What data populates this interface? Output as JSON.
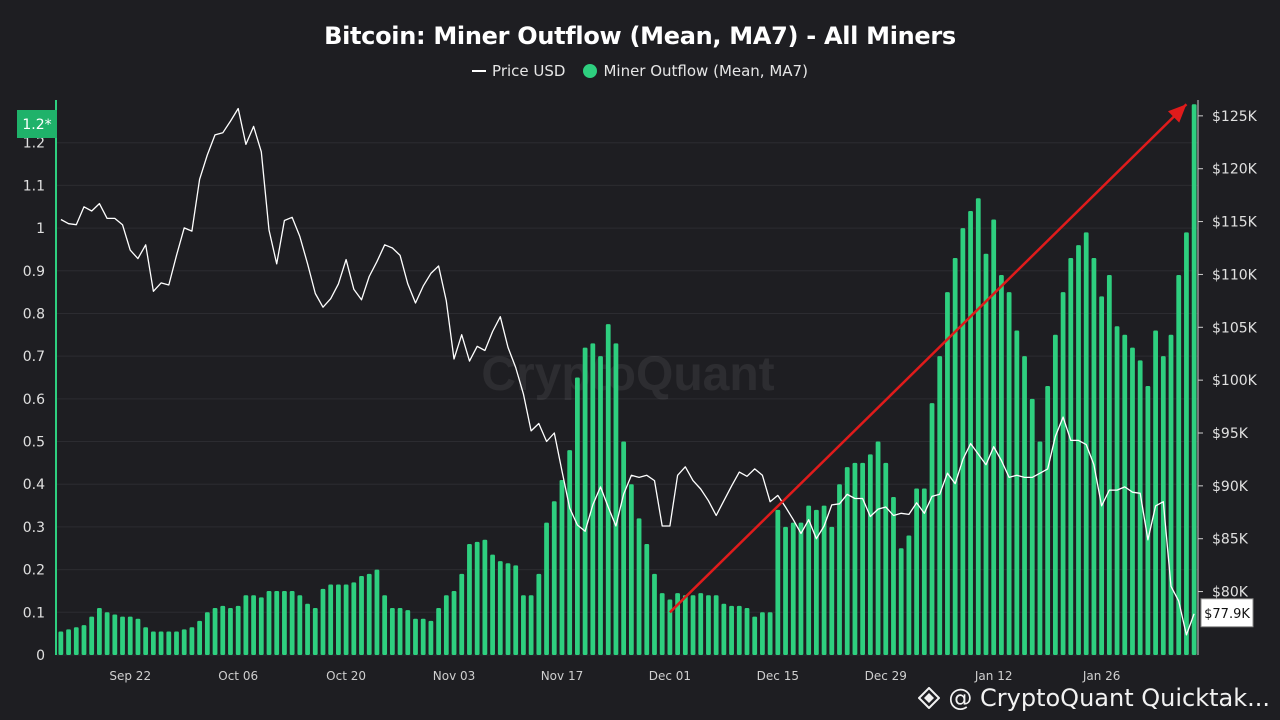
{
  "title": "Bitcoin: Miner Outflow (Mean, MA7) - All Miners",
  "legend": {
    "price_label": "Price USD",
    "outflow_label": "Miner Outflow (Mean, MA7)"
  },
  "watermark": "CryptoQuant",
  "footer_text": "@ CryptoQuant Quicktak...",
  "colors": {
    "background": "#1e1e22",
    "bars": "#2ecf7f",
    "price": "#ffffff",
    "arrow": "#e01b1b",
    "grid": "#2c2c31"
  },
  "chart_data": {
    "type": "bar",
    "x_tick_labels": [
      "Sep 22",
      "Oct 06",
      "Oct 20",
      "Nov 03",
      "Nov 17",
      "Dec 01",
      "Dec 15",
      "Dec 29",
      "Jan 12",
      "Jan 26"
    ],
    "left_axis": {
      "ticks": [
        "0",
        "0.1",
        "0.2",
        "0.3",
        "0.4",
        "0.5",
        "0.6",
        "0.7",
        "0.8",
        "0.9",
        "1",
        "1.1",
        "1.2"
      ],
      "ylim": [
        0,
        1.3
      ],
      "highlight_label": "1.2*"
    },
    "right_axis": {
      "ticks": [
        "$80K",
        "$85K",
        "$90K",
        "$95K",
        "$100K",
        "$105K",
        "$110K",
        "$115K",
        "$120K",
        "$125K"
      ],
      "ylim": [
        74000,
        126500
      ],
      "current_price_label": "$77.9K"
    },
    "series": [
      {
        "name": "Miner Outflow (Mean, MA7)",
        "axis": "left",
        "kind": "bar",
        "values": [
          0.055,
          0.06,
          0.065,
          0.07,
          0.09,
          0.11,
          0.1,
          0.095,
          0.09,
          0.09,
          0.085,
          0.065,
          0.055,
          0.055,
          0.055,
          0.055,
          0.06,
          0.065,
          0.08,
          0.1,
          0.11,
          0.115,
          0.11,
          0.115,
          0.14,
          0.14,
          0.135,
          0.15,
          0.15,
          0.15,
          0.15,
          0.14,
          0.12,
          0.11,
          0.155,
          0.165,
          0.165,
          0.165,
          0.17,
          0.185,
          0.19,
          0.2,
          0.14,
          0.11,
          0.11,
          0.105,
          0.085,
          0.085,
          0.08,
          0.11,
          0.14,
          0.15,
          0.19,
          0.26,
          0.265,
          0.27,
          0.235,
          0.22,
          0.215,
          0.21,
          0.14,
          0.14,
          0.19,
          0.31,
          0.36,
          0.41,
          0.48,
          0.65,
          0.72,
          0.73,
          0.7,
          0.775,
          0.73,
          0.5,
          0.4,
          0.32,
          0.26,
          0.19,
          0.145,
          0.13,
          0.145,
          0.14,
          0.14,
          0.145,
          0.14,
          0.14,
          0.12,
          0.115,
          0.115,
          0.11,
          0.09,
          0.1,
          0.1,
          0.34,
          0.3,
          0.31,
          0.31,
          0.35,
          0.34,
          0.35,
          0.3,
          0.4,
          0.44,
          0.45,
          0.45,
          0.47,
          0.5,
          0.45,
          0.37,
          0.25,
          0.28,
          0.39,
          0.39,
          0.59,
          0.7,
          0.85,
          0.93,
          1.0,
          1.04,
          1.07,
          0.94,
          1.02,
          0.89,
          0.85,
          0.76,
          0.7,
          0.6,
          0.5,
          0.63,
          0.75,
          0.85,
          0.93,
          0.96,
          0.99,
          0.93,
          0.84,
          0.89,
          0.77,
          0.75,
          0.72,
          0.69,
          0.63,
          0.76,
          0.7,
          0.75,
          0.89,
          0.99,
          1.29
        ]
      },
      {
        "name": "Price USD",
        "axis": "right",
        "kind": "line",
        "values": [
          115200,
          114800,
          114700,
          116400,
          116000,
          116700,
          115300,
          115300,
          114700,
          112300,
          111500,
          112800,
          108400,
          109200,
          109000,
          111800,
          114400,
          114100,
          119000,
          121300,
          123200,
          123400,
          124500,
          125700,
          122300,
          124000,
          121600,
          114200,
          111000,
          115100,
          115400,
          113600,
          111000,
          108200,
          106900,
          107700,
          109100,
          111400,
          108600,
          107600,
          109800,
          111200,
          112800,
          112500,
          111800,
          109100,
          107300,
          108900,
          110100,
          110800,
          107500,
          102000,
          104300,
          101800,
          103200,
          102800,
          104600,
          106000,
          103100,
          101200,
          98700,
          95200,
          95900,
          94200,
          95000,
          91400,
          87900,
          86300,
          85700,
          88200,
          89900,
          88000,
          86200,
          89200,
          91000,
          90800,
          91000,
          90500,
          86200,
          86200,
          91000,
          91800,
          90500,
          89700,
          88600,
          87200,
          88600,
          90000,
          91300,
          90900,
          91600,
          91000,
          88500,
          89100,
          88000,
          86800,
          85500,
          86800,
          85000,
          86200,
          88200,
          88300,
          89200,
          88800,
          88800,
          87100,
          87800,
          88000,
          87200,
          87400,
          87300,
          88400,
          87400,
          89000,
          89200,
          91200,
          90200,
          92500,
          94000,
          93000,
          92000,
          93700,
          92400,
          90800,
          91000,
          90800,
          90800,
          91200,
          91600,
          94700,
          96500,
          94300,
          94300,
          93900,
          92000,
          88100,
          89600,
          89600,
          89900,
          89400,
          89300,
          84900,
          88100,
          88500,
          80500,
          79100,
          75900,
          77900
        ]
      }
    ]
  }
}
